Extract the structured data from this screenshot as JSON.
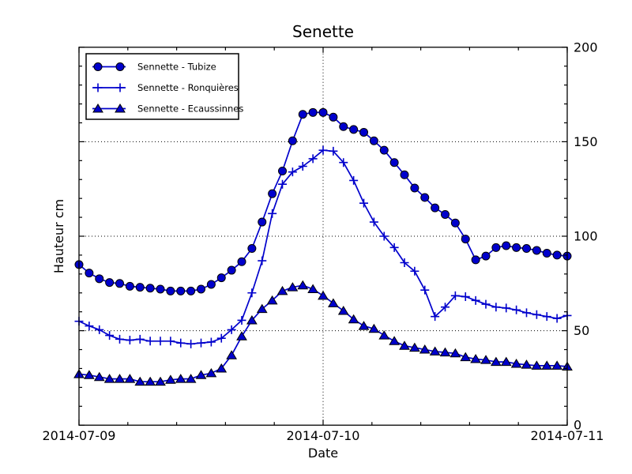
{
  "figure": {
    "background": "#ffffff",
    "text_color": "#000000"
  },
  "colors": {
    "series_blue": "#0000cc",
    "marker_edge": "#000000",
    "axis_black": "#000000",
    "grid_black": "#000000",
    "legend_background": "#ffffff",
    "legend_border": "#000000"
  },
  "chart_data": {
    "type": "line",
    "title": "Senette",
    "xlabel": "Date",
    "ylabel": "Hauteur cm",
    "x_unit": "hours since 2014-07-09 00:00",
    "x_range_days": [
      "2014-07-09",
      "2014-07-11"
    ],
    "xtick_labels": [
      "2014-07-09",
      "2014-07-10",
      "2014-07-11"
    ],
    "xtick_positions": [
      0,
      24,
      48
    ],
    "x_minor_step_hours": 4.8,
    "ylim": [
      0,
      200
    ],
    "yticks": [
      0,
      50,
      100,
      150,
      200
    ],
    "y_minor_step": 10,
    "grid": "dotted black lines at major ticks",
    "legend_position": "upper left",
    "x": [
      0,
      1,
      2,
      3,
      4,
      5,
      6,
      7,
      8,
      9,
      10,
      11,
      12,
      13,
      14,
      15,
      16,
      17,
      18,
      19,
      20,
      21,
      22,
      23,
      24,
      25,
      26,
      27,
      28,
      29,
      30,
      31,
      32,
      33,
      34,
      35,
      36,
      37,
      38,
      39,
      40,
      41,
      42,
      43,
      44,
      45,
      46,
      47,
      48
    ],
    "series": [
      {
        "name": "Sennette - Tubize",
        "marker": "circle",
        "color": "#0000cc",
        "values": [
          85,
          80.5,
          77.5,
          75.5,
          75,
          73.5,
          73,
          72.5,
          72,
          71,
          71,
          71,
          72,
          74.5,
          78,
          82,
          86.5,
          93.5,
          107.5,
          122.5,
          134.5,
          150.5,
          164.5,
          165.5,
          165.5,
          163,
          158,
          156.5,
          155,
          150.5,
          145.5,
          139,
          132.5,
          125.5,
          120.5,
          115,
          111.5,
          107,
          98.5,
          87.5,
          89.5,
          94,
          95,
          94,
          93.5,
          92.5,
          91,
          90,
          89.5
        ]
      },
      {
        "name": "Sennette - Ronquières",
        "marker": "plus",
        "color": "#0000cc",
        "values": [
          55,
          52.5,
          50.5,
          47.5,
          45.5,
          45,
          45.5,
          44.5,
          44.5,
          44.5,
          43.5,
          43,
          43.5,
          44,
          46,
          50.5,
          55.5,
          70,
          87,
          112,
          127.5,
          134,
          137,
          141,
          145.5,
          145,
          139,
          129.5,
          117.5,
          107.5,
          100,
          94,
          86,
          81.5,
          71.5,
          57.5,
          62.5,
          68.5,
          68,
          66,
          64,
          62.5,
          62,
          61,
          59.5,
          58.5,
          57.5,
          56.5,
          58
        ]
      },
      {
        "name": "Sennette - Ecaussinnes",
        "marker": "triangle",
        "color": "#0000cc",
        "values": [
          27,
          26.5,
          25.5,
          24.5,
          24.5,
          24.5,
          23,
          23,
          23,
          24,
          24.5,
          24.5,
          26.5,
          27.5,
          30,
          37,
          47,
          55.5,
          61.5,
          66,
          71,
          73,
          74,
          72,
          68.5,
          64.5,
          60.5,
          56,
          52.5,
          51,
          47.5,
          44.5,
          42,
          41,
          40,
          39,
          38.5,
          38,
          36,
          35,
          34.5,
          33.5,
          33.5,
          32.5,
          32,
          31.5,
          31.5,
          31.5,
          31
        ]
      }
    ]
  }
}
